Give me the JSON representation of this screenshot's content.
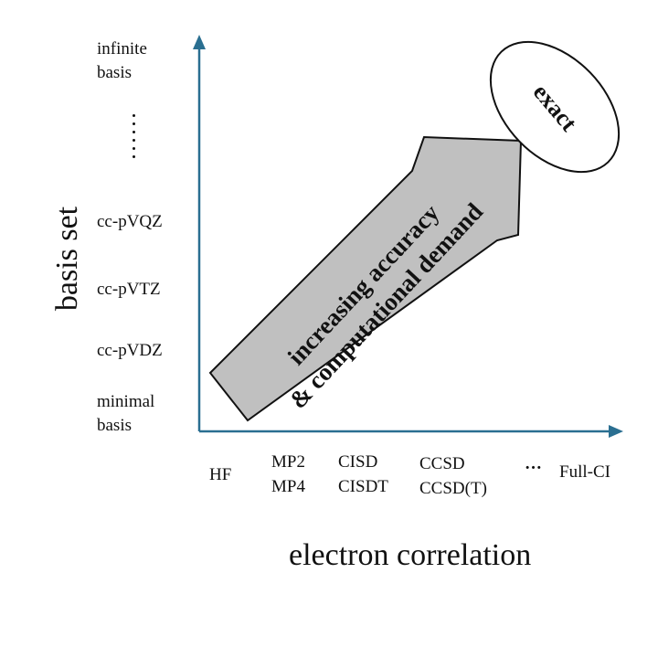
{
  "axes": {
    "y_title": "basis set",
    "x_title": "electron correlation"
  },
  "y_ticks": {
    "infinite": [
      "infinite",
      "basis"
    ],
    "qz": "cc-pVQZ",
    "tz": "cc-pVTZ",
    "dz": "cc-pVDZ",
    "minimal": [
      "minimal",
      "basis"
    ]
  },
  "x_ticks": {
    "hf": "HF",
    "mp": [
      "MP2",
      "MP4"
    ],
    "ci": [
      "CISD",
      "CISDT"
    ],
    "cc": [
      "CCSD",
      "CCSD(T)"
    ],
    "ellipsis": "···",
    "fullci": "Full-CI"
  },
  "arrow": {
    "line1": "increasing accuracy",
    "line2": "& computational demand"
  },
  "target": {
    "label": "exact"
  },
  "colors": {
    "axis": "#2a6f91",
    "arrow_fill": "#c0c0c0",
    "outline": "#111111"
  }
}
